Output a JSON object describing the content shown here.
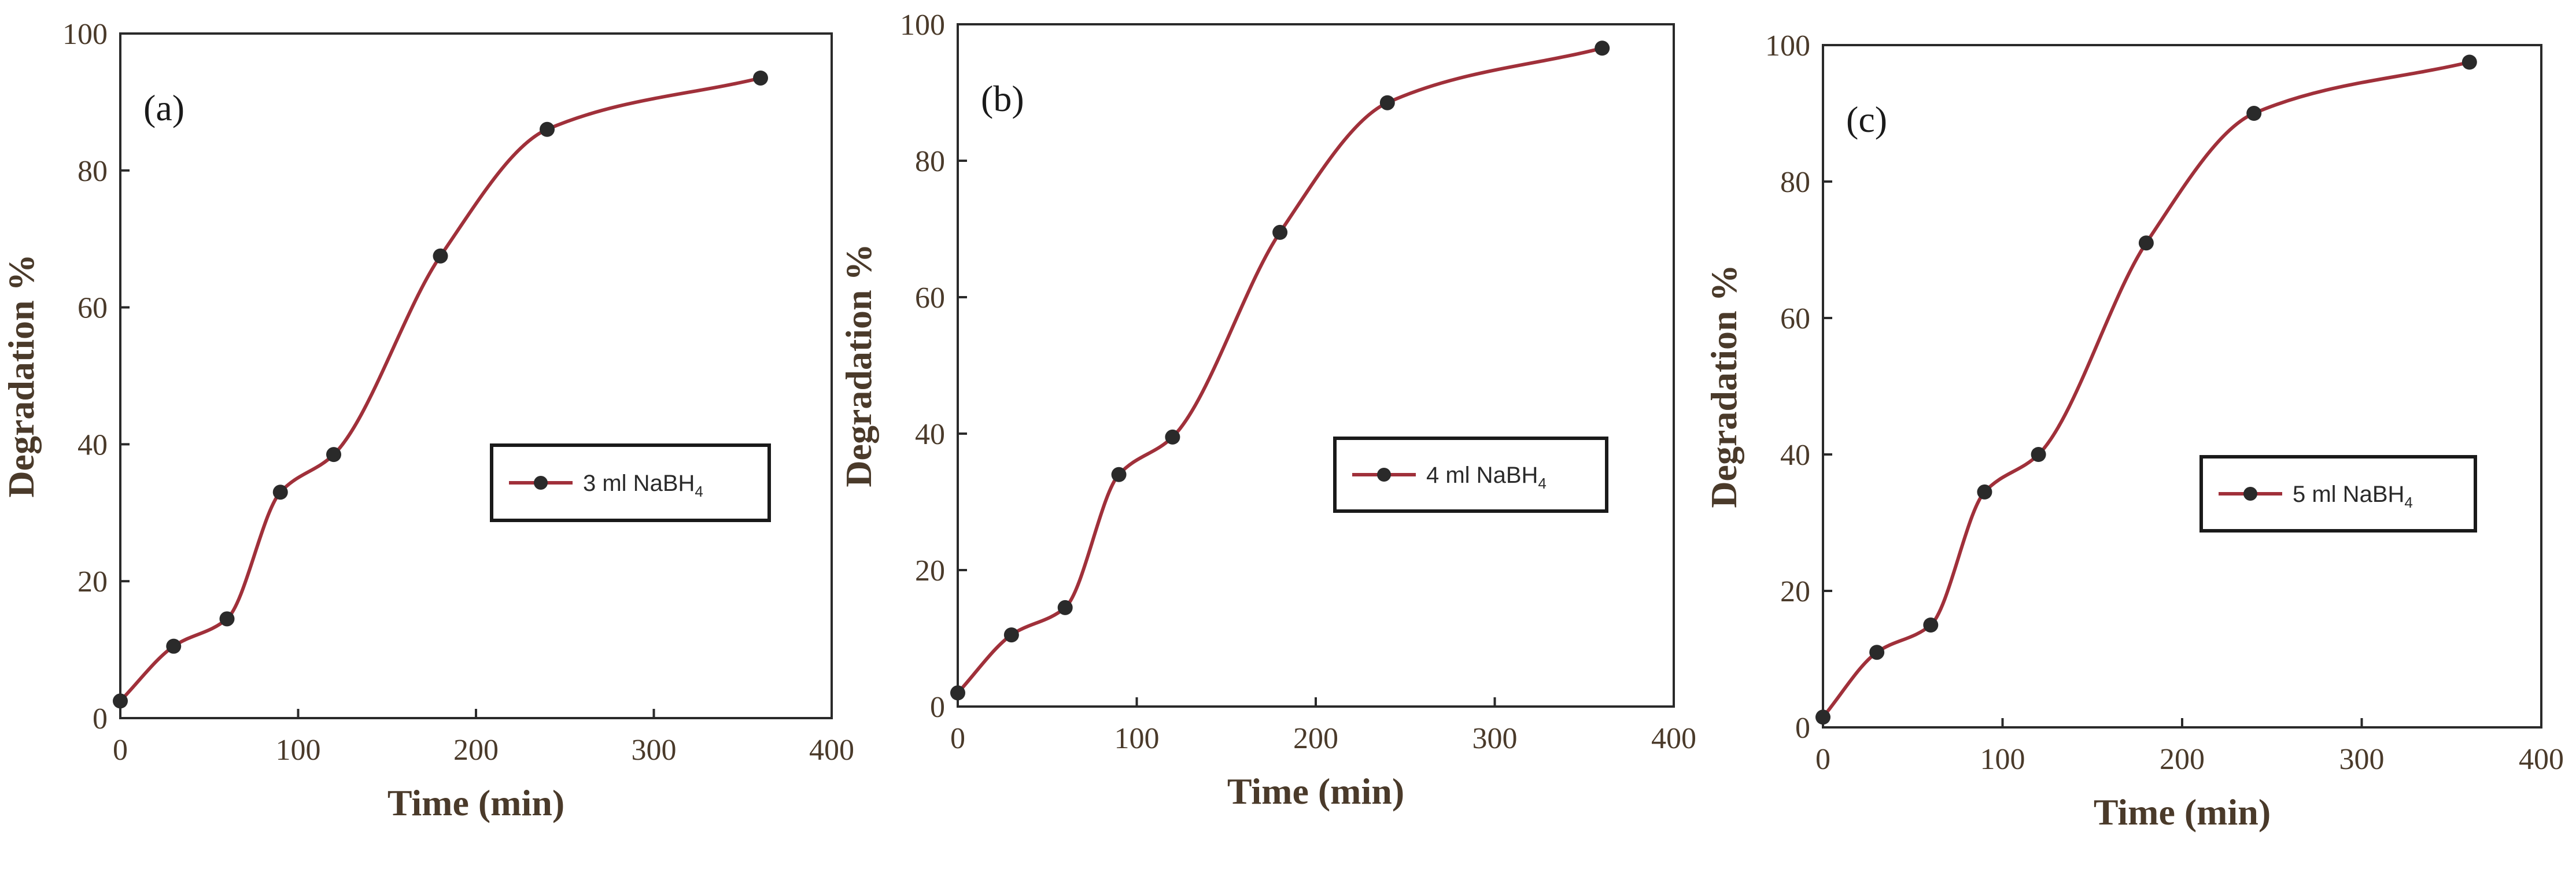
{
  "chart_data": [
    {
      "type": "line",
      "panel_label": "(a)",
      "xlabel": "Time (min)",
      "ylabel": "Degradation %",
      "xlim": [
        0,
        400
      ],
      "ylim": [
        0,
        100
      ],
      "xticks": [
        0,
        100,
        200,
        300,
        400
      ],
      "yticks": [
        0,
        20,
        40,
        60,
        80,
        100
      ],
      "grid": false,
      "legend_position": "center-right",
      "series": [
        {
          "name": "3 ml NaBH4",
          "legend_main": "3 ml NaBH",
          "legend_sub": "4",
          "color": "#a0303a",
          "x": [
            0,
            30,
            60,
            90,
            120,
            180,
            240,
            360
          ],
          "y": [
            2.5,
            10.5,
            14.5,
            33,
            38.5,
            67.5,
            86,
            93.5
          ]
        }
      ]
    },
    {
      "type": "line",
      "panel_label": "(b)",
      "xlabel": "Time (min)",
      "ylabel": "Degradation %",
      "xlim": [
        0,
        400
      ],
      "ylim": [
        0,
        100
      ],
      "xticks": [
        0,
        100,
        200,
        300,
        400
      ],
      "yticks": [
        0,
        20,
        40,
        60,
        80,
        100
      ],
      "grid": false,
      "legend_position": "center-right",
      "series": [
        {
          "name": "4 ml NaBH4",
          "legend_main": "4 ml NaBH",
          "legend_sub": "4",
          "color": "#a0303a",
          "x": [
            0,
            30,
            60,
            90,
            120,
            180,
            240,
            360
          ],
          "y": [
            2,
            10.5,
            14.5,
            34,
            39.5,
            69.5,
            88.5,
            96.5
          ]
        }
      ]
    },
    {
      "type": "line",
      "panel_label": "(c)",
      "xlabel": "Time (min)",
      "ylabel": "Degradation %",
      "xlim": [
        0,
        400
      ],
      "ylim": [
        0,
        100
      ],
      "xticks": [
        0,
        100,
        200,
        300,
        400
      ],
      "yticks": [
        0,
        20,
        40,
        60,
        80,
        100
      ],
      "grid": false,
      "legend_position": "center-right",
      "series": [
        {
          "name": "5 ml NaBH4",
          "legend_main": "5 ml NaBH",
          "legend_sub": "4",
          "color": "#a0303a",
          "x": [
            0,
            30,
            60,
            90,
            120,
            180,
            240,
            360
          ],
          "y": [
            1.5,
            11,
            15,
            34.5,
            40,
            71,
            90,
            97.5
          ]
        }
      ]
    }
  ]
}
